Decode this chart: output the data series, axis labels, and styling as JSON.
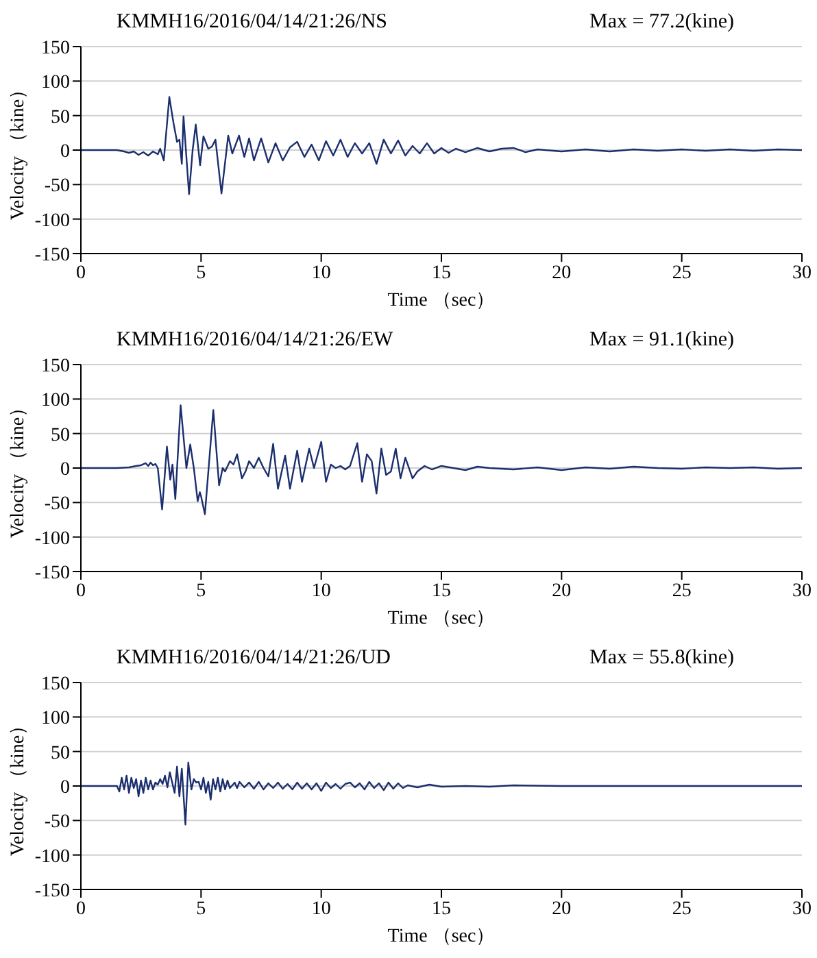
{
  "chart_data": [
    {
      "type": "line",
      "title": "KMMH16/2016/04/14/21:26/NS",
      "annotations": [
        "Max = 77.2(kine)"
      ],
      "xlabel": "Time （sec）",
      "ylabel": "Velocity （kine）",
      "xlim": [
        0,
        30
      ],
      "ylim": [
        -150,
        150
      ],
      "xticks": [
        0,
        5,
        10,
        15,
        20,
        25,
        30
      ],
      "yticks": [
        -150,
        -100,
        -50,
        0,
        50,
        100,
        150
      ],
      "grid": "y",
      "marker": "none",
      "line_style": "solid",
      "x": [
        0,
        1.5,
        1.8,
        2.0,
        2.2,
        2.4,
        2.6,
        2.8,
        3.0,
        3.2,
        3.3,
        3.45,
        3.68,
        3.85,
        4.0,
        4.1,
        4.2,
        4.27,
        4.5,
        4.65,
        4.78,
        4.96,
        5.1,
        5.3,
        5.45,
        5.6,
        5.85,
        6.13,
        6.3,
        6.58,
        6.8,
        7.0,
        7.2,
        7.5,
        7.8,
        8.1,
        8.4,
        8.7,
        9.0,
        9.3,
        9.6,
        9.9,
        10.2,
        10.5,
        10.8,
        11.1,
        11.4,
        11.7,
        12.0,
        12.3,
        12.6,
        12.9,
        13.2,
        13.5,
        13.8,
        14.1,
        14.4,
        14.7,
        15.0,
        15.3,
        15.6,
        16.0,
        16.5,
        17,
        17.5,
        18,
        18.5,
        19,
        20,
        21,
        22,
        23,
        24,
        25,
        26,
        27,
        28,
        29,
        30
      ],
      "series": [
        {
          "color": "#1b2f6e",
          "values": [
            0,
            0,
            -2,
            -4,
            -2,
            -7,
            -3,
            -8,
            -2,
            -6,
            2,
            -15,
            77,
            40,
            12,
            15,
            -20,
            49,
            -64,
            0,
            37,
            -22,
            20,
            2,
            5,
            15,
            -63,
            21,
            -5,
            21,
            -10,
            17,
            -15,
            17,
            -18,
            10,
            -15,
            4,
            12,
            -10,
            8,
            -15,
            13,
            -8,
            15,
            -10,
            10,
            -5,
            10,
            -20,
            15,
            -5,
            14,
            -8,
            6,
            -5,
            10,
            -5,
            3,
            -4,
            2,
            -3,
            3,
            -2,
            2,
            3,
            -3,
            1,
            -2,
            1,
            -2,
            1,
            -1,
            1,
            -1,
            1,
            -1,
            1,
            0
          ]
        }
      ]
    },
    {
      "type": "line",
      "title": "KMMH16/2016/04/14/21:26/EW",
      "annotations": [
        "Max = 91.1(kine)"
      ],
      "xlabel": "Time （sec）",
      "ylabel": "Velocity （kine）",
      "xlim": [
        0,
        30
      ],
      "ylim": [
        -150,
        150
      ],
      "xticks": [
        0,
        5,
        10,
        15,
        20,
        25,
        30
      ],
      "yticks": [
        -150,
        -100,
        -50,
        0,
        50,
        100,
        150
      ],
      "grid": "y",
      "marker": "none",
      "line_style": "solid",
      "x": [
        0,
        1.5,
        2.0,
        2.3,
        2.5,
        2.7,
        2.8,
        2.9,
        3.0,
        3.1,
        3.2,
        3.38,
        3.58,
        3.72,
        3.81,
        3.93,
        4.15,
        4.39,
        4.55,
        4.7,
        4.86,
        4.95,
        5.0,
        5.16,
        5.51,
        5.75,
        5.9,
        6.0,
        6.2,
        6.35,
        6.5,
        6.7,
        6.85,
        7.0,
        7.2,
        7.4,
        7.6,
        7.8,
        8.0,
        8.2,
        8.5,
        8.7,
        9.0,
        9.2,
        9.5,
        9.7,
        10.0,
        10.2,
        10.4,
        10.6,
        10.8,
        11.0,
        11.2,
        11.5,
        11.7,
        11.9,
        12.1,
        12.3,
        12.5,
        12.7,
        12.9,
        13.1,
        13.3,
        13.5,
        13.8,
        14.0,
        14.3,
        14.6,
        15.0,
        15.5,
        16,
        16.5,
        17,
        18,
        19,
        20,
        21,
        22,
        23,
        24,
        25,
        26,
        27,
        28,
        29,
        30
      ],
      "series": [
        {
          "color": "#1b2f6e",
          "values": [
            0,
            0,
            1,
            3,
            4,
            7,
            3,
            8,
            4,
            6,
            0,
            -60,
            31,
            -17,
            5,
            -45,
            91,
            0,
            34,
            0,
            -48,
            -35,
            -41,
            -67,
            84,
            -25,
            0,
            -5,
            10,
            5,
            20,
            -15,
            -5,
            10,
            0,
            15,
            0,
            -12,
            35,
            -30,
            18,
            -30,
            25,
            -20,
            28,
            0,
            38,
            -20,
            5,
            0,
            3,
            -2,
            3,
            36,
            -20,
            20,
            10,
            -37,
            28,
            -10,
            -5,
            28,
            -15,
            15,
            -15,
            -5,
            3,
            -2,
            3,
            0,
            -3,
            2,
            0,
            -2,
            1,
            -3,
            1,
            -1,
            2,
            0,
            -1,
            1,
            0,
            1,
            -1,
            0
          ]
        }
      ]
    },
    {
      "type": "line",
      "title": "KMMH16/2016/04/14/21:26/UD",
      "annotations": [
        "Max = 55.8(kine)"
      ],
      "xlabel": "Time （sec）",
      "ylabel": "Velocity （kine）",
      "xlim": [
        0,
        30
      ],
      "ylim": [
        -150,
        150
      ],
      "xticks": [
        0,
        5,
        10,
        15,
        20,
        25,
        30
      ],
      "yticks": [
        -150,
        -100,
        -50,
        0,
        50,
        100,
        150
      ],
      "grid": "y",
      "marker": "none",
      "line_style": "solid",
      "x": [
        0,
        1.5,
        1.6,
        1.7,
        1.8,
        1.9,
        2.0,
        2.1,
        2.2,
        2.3,
        2.4,
        2.5,
        2.6,
        2.7,
        2.8,
        2.9,
        3.0,
        3.1,
        3.2,
        3.3,
        3.4,
        3.5,
        3.6,
        3.7,
        3.8,
        3.9,
        4.0,
        4.1,
        4.2,
        4.35,
        4.47,
        4.6,
        4.7,
        4.8,
        4.9,
        5.0,
        5.1,
        5.2,
        5.3,
        5.4,
        5.5,
        5.6,
        5.7,
        5.8,
        5.9,
        6.0,
        6.1,
        6.2,
        6.4,
        6.5,
        6.6,
        6.8,
        7.0,
        7.2,
        7.4,
        7.6,
        7.8,
        8.0,
        8.2,
        8.4,
        8.6,
        8.8,
        9.0,
        9.2,
        9.4,
        9.6,
        9.8,
        10.0,
        10.2,
        10.4,
        10.6,
        10.8,
        11.0,
        11.2,
        11.4,
        11.6,
        11.8,
        12.0,
        12.2,
        12.4,
        12.6,
        12.8,
        13.0,
        13.2,
        13.4,
        13.6,
        14.0,
        14.5,
        15.0,
        16,
        17,
        18,
        20,
        25,
        30
      ],
      "series": [
        {
          "color": "#1b2f6e",
          "values": [
            0,
            0,
            -8,
            12,
            -5,
            15,
            -10,
            12,
            -3,
            10,
            -15,
            8,
            -10,
            12,
            -5,
            8,
            -5,
            5,
            2,
            10,
            3,
            15,
            -2,
            20,
            5,
            -10,
            28,
            -15,
            25,
            -56,
            34,
            -5,
            10,
            5,
            6,
            -5,
            12,
            -10,
            6,
            -20,
            10,
            -5,
            12,
            -8,
            10,
            -5,
            8,
            -3,
            5,
            -3,
            6,
            -2,
            5,
            -4,
            6,
            -5,
            4,
            -3,
            5,
            -4,
            3,
            -5,
            5,
            -4,
            4,
            -5,
            4,
            -7,
            5,
            -3,
            3,
            -4,
            3,
            5,
            -2,
            4,
            -5,
            6,
            -3,
            4,
            -6,
            5,
            -4,
            4,
            -3,
            1,
            -2,
            2,
            -1,
            0,
            -1,
            1,
            0,
            0,
            0
          ]
        }
      ]
    }
  ]
}
